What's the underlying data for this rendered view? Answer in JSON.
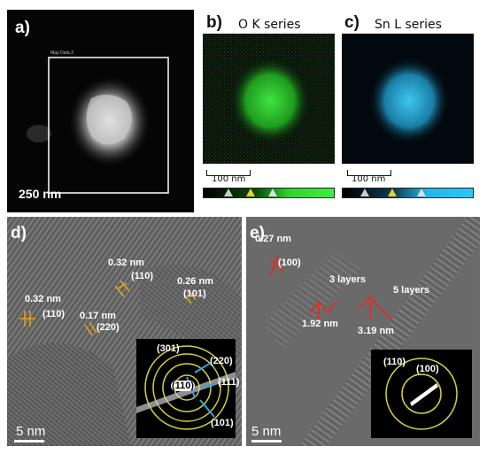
{
  "panels": {
    "a": {
      "label": "a)",
      "box_label": "Map Data 3",
      "scale": "250 nm"
    },
    "b": {
      "label": "b)",
      "title": "O K series",
      "scale": "100 nm",
      "color": "#2fd12f"
    },
    "c": {
      "label": "c)",
      "title": "Sn L series",
      "scale": "100 nm",
      "color": "#22b8e8"
    },
    "d": {
      "label": "d)",
      "scale": "5 nm",
      "annotations": [
        "0.32 nm",
        "(110)",
        "0.26 nm",
        "(101)",
        "0.32 nm",
        "(110)",
        "0.17 nm",
        "(220)"
      ],
      "saed": [
        "(301)",
        "(220)",
        "(111)",
        "(110)",
        "(101)"
      ]
    },
    "e": {
      "label": "e)",
      "scale": "5 nm",
      "annotations": [
        "0.27 nm",
        "(100)",
        "3 layers",
        "5 layers",
        "1.92 nm",
        "3.19 nm"
      ],
      "saed": [
        "(110)",
        "(100)"
      ]
    }
  }
}
